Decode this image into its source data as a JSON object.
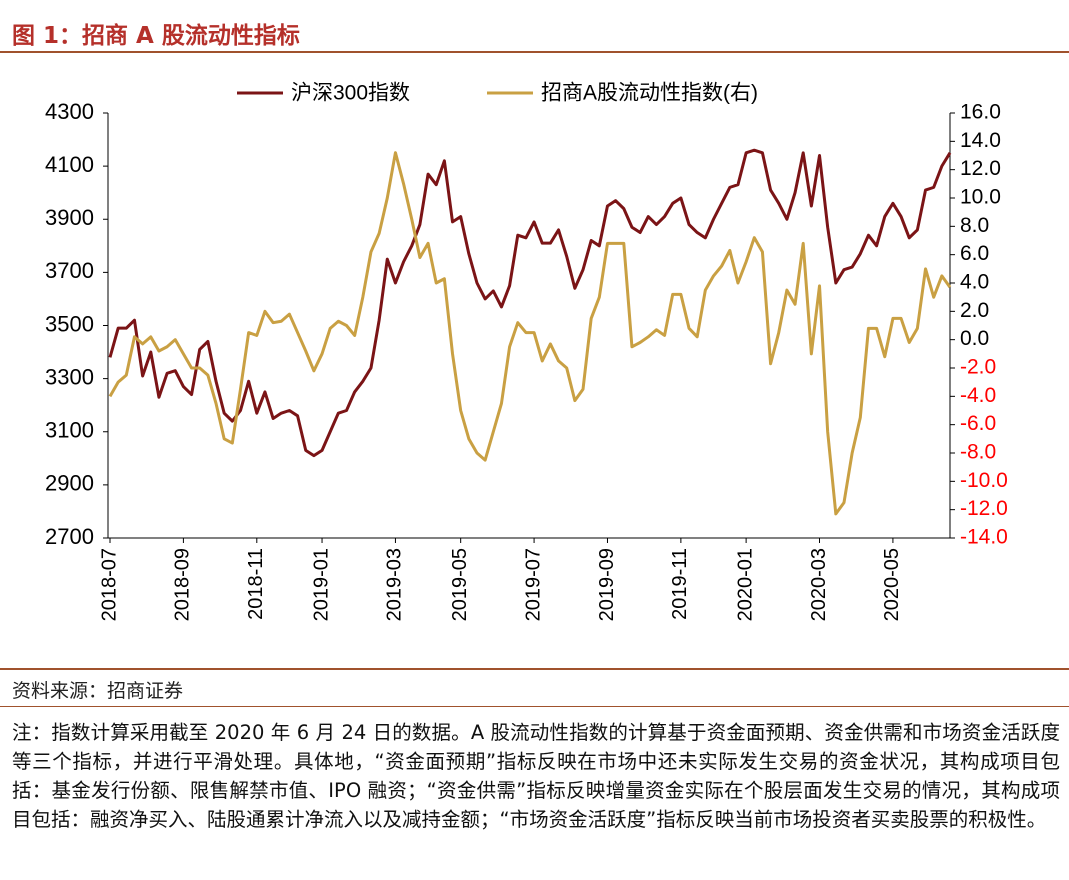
{
  "header": {
    "title": "图 1：招商 A 股流动性指标"
  },
  "chart_data": {
    "type": "line",
    "categories": [
      "2018-07",
      null,
      null,
      null,
      null,
      null,
      null,
      null,
      null,
      "2018-09",
      null,
      null,
      null,
      null,
      null,
      null,
      null,
      null,
      "2018-11",
      null,
      null,
      null,
      null,
      null,
      null,
      null,
      "2019-01",
      null,
      null,
      null,
      null,
      null,
      null,
      null,
      null,
      "2019-03",
      null,
      null,
      null,
      null,
      null,
      null,
      null,
      "2019-05",
      null,
      null,
      null,
      null,
      null,
      null,
      null,
      null,
      "2019-07",
      null,
      null,
      null,
      null,
      null,
      null,
      null,
      null,
      "2019-09",
      null,
      null,
      null,
      null,
      null,
      null,
      null,
      null,
      "2019-11",
      null,
      null,
      null,
      null,
      null,
      null,
      null,
      "2020-01",
      null,
      null,
      null,
      null,
      null,
      null,
      null,
      null,
      "2020-03",
      null,
      null,
      null,
      null,
      null,
      null,
      null,
      null,
      "2020-05",
      null,
      null,
      null,
      null,
      null,
      null,
      null
    ],
    "series": [
      {
        "name": "沪深300指数",
        "color": "#7b1416",
        "values": [
          3380,
          3490,
          3490,
          3520,
          3310,
          3400,
          3230,
          3320,
          3330,
          3270,
          3240,
          3410,
          3440,
          3290,
          3170,
          3140,
          3180,
          3290,
          3170,
          3250,
          3150,
          3170,
          3180,
          3160,
          3030,
          3010,
          3030,
          3100,
          3170,
          3180,
          3250,
          3290,
          3340,
          3520,
          3750,
          3660,
          3740,
          3800,
          3880,
          4070,
          4030,
          4120,
          3890,
          3910,
          3770,
          3660,
          3600,
          3630,
          3570,
          3650,
          3840,
          3830,
          3890,
          3810,
          3810,
          3860,
          3760,
          3640,
          3710,
          3820,
          3800,
          3950,
          3970,
          3940,
          3870,
          3850,
          3910,
          3880,
          3910,
          3960,
          3980,
          3880,
          3850,
          3830,
          3900,
          3960,
          4020,
          4030,
          4150,
          4160,
          4150,
          4010,
          3960,
          3900,
          4000,
          4150,
          3950,
          4140,
          3870,
          3660,
          3710,
          3720,
          3770,
          3840,
          3800,
          3910,
          3960,
          3910,
          3830,
          3860,
          4010,
          4020,
          4100,
          4150
        ]
      },
      {
        "name": "招商A股流动性指数(右)",
        "color": "#c9a043",
        "axis": "y2",
        "values": [
          -4.0,
          -3.0,
          -2.5,
          0.2,
          -0.3,
          0.2,
          -0.8,
          -0.5,
          0.0,
          -1.0,
          -2.0,
          -2.0,
          -2.5,
          -4.5,
          -7.0,
          -7.3,
          -3.5,
          0.5,
          0.3,
          2.0,
          1.2,
          1.3,
          1.8,
          0.5,
          -0.8,
          -2.2,
          -1.0,
          0.8,
          1.3,
          1.0,
          0.3,
          3.0,
          6.2,
          7.5,
          10.0,
          13.2,
          11.0,
          8.5,
          5.8,
          6.8,
          4.0,
          4.3,
          -1.0,
          -5.0,
          -7.0,
          -8.0,
          -8.5,
          -6.5,
          -4.5,
          -0.5,
          1.2,
          0.5,
          0.5,
          -1.5,
          -0.3,
          -1.5,
          -2.0,
          -4.3,
          -3.5,
          1.5,
          3.0,
          6.8,
          6.8,
          6.8,
          -0.5,
          -0.2,
          0.2,
          0.7,
          0.3,
          3.2,
          3.2,
          0.8,
          0.2,
          3.5,
          4.5,
          5.2,
          6.3,
          4.0,
          5.5,
          7.2,
          6.2,
          -1.7,
          0.5,
          3.5,
          2.5,
          6.8,
          -1.0,
          3.8,
          -6.5,
          -12.3,
          -11.5,
          -8.0,
          -5.5,
          0.8,
          0.8,
          -1.2,
          1.5,
          1.5,
          -0.2,
          0.8,
          5.0,
          3.0,
          4.5,
          3.7
        ]
      }
    ],
    "ylim": [
      2700,
      4300
    ],
    "yticks": [
      2700,
      2900,
      3100,
      3300,
      3500,
      3700,
      3900,
      4100,
      4300
    ],
    "y2lim": [
      -14,
      16
    ],
    "y2ticks": [
      {
        "value": -14,
        "label": "-14.0"
      },
      {
        "value": -12,
        "label": "-12.0"
      },
      {
        "value": -10,
        "label": "-10.0"
      },
      {
        "value": -8,
        "label": "-8.0"
      },
      {
        "value": -6,
        "label": "-6.0"
      },
      {
        "value": -4,
        "label": "-4.0"
      },
      {
        "value": -2,
        "label": "-2.0"
      },
      {
        "value": 0,
        "label": "0.0"
      },
      {
        "value": 2,
        "label": "2.0"
      },
      {
        "value": 4,
        "label": "4.0"
      },
      {
        "value": 6,
        "label": "6.0"
      },
      {
        "value": 8,
        "label": "8.0"
      },
      {
        "value": 10,
        "label": "10.0"
      },
      {
        "value": 12,
        "label": "12.0"
      },
      {
        "value": 14,
        "label": "14.0"
      },
      {
        "value": 16,
        "label": "16.0"
      }
    ],
    "y2_negative_tick_color": "#ff0000",
    "legend": "top"
  },
  "footer": {
    "source": "资料来源：招商证券",
    "note": "注：指数计算采用截至 2020 年 6 月 24 日的数据。A 股流动性指数的计算基于资金面预期、资金供需和市场资金活跃度等三个指标，并进行平滑处理。具体地，“资金面预期”指标反映在市场中还未实际发生交易的资金状况，其构成项目包括：基金发行份额、限售解禁市值、IPO 融资；“资金供需”指标反映增量资金实际在个股层面发生交易的情况，其构成项目包括：融资净买入、陆股通累计净流入以及减持金额；“市场资金活跃度”指标反映当前市场投资者买卖股票的积极性。"
  }
}
